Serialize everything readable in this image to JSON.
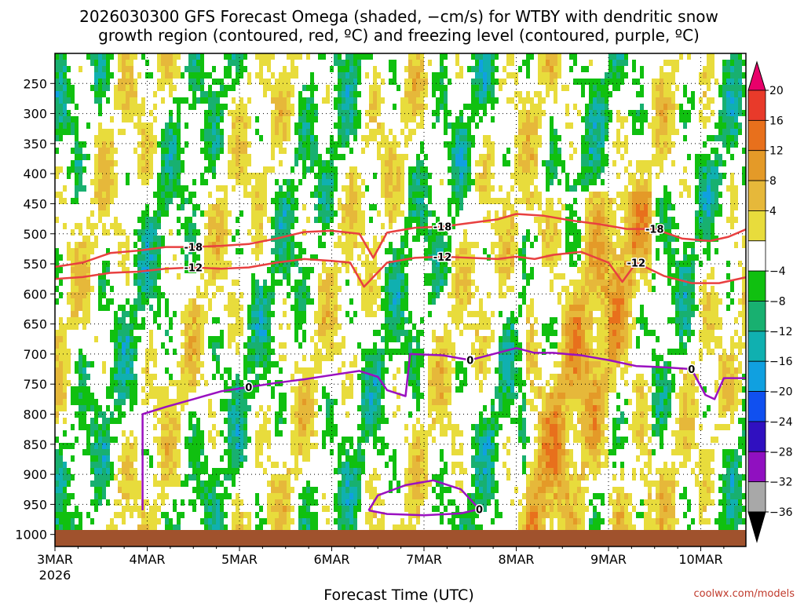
{
  "chart_data": {
    "type": "heatmap",
    "title_line1": "2026030300 GFS Forecast Omega (shaded, −cm/s) for WTBY with dendritic snow",
    "title_line2": "growth region (contoured, red, ºC) and freezing level (contoured, purple, ºC)",
    "xlabel": "Forecast Time (UTC)",
    "ylabel": "",
    "x_ticks": [
      "3MAR",
      "4MAR",
      "5MAR",
      "6MAR",
      "7MAR",
      "8MAR",
      "9MAR",
      "10MAR"
    ],
    "x_year": "2026",
    "y_ticks": [
      "250",
      "300",
      "350",
      "400",
      "450",
      "500",
      "550",
      "600",
      "650",
      "700",
      "750",
      "800",
      "850",
      "900",
      "950",
      "1000"
    ],
    "y_tick_values": [
      250,
      300,
      350,
      400,
      450,
      500,
      550,
      600,
      650,
      700,
      750,
      800,
      850,
      900,
      950,
      1000
    ],
    "ylim": [
      200,
      1020
    ],
    "xlim_days": [
      0,
      7.5
    ],
    "colorbar": {
      "labels": [
        "20",
        "16",
        "12",
        "8",
        "4",
        "−4",
        "−8",
        "−12",
        "−16",
        "−20",
        "−24",
        "−28",
        "−32",
        "−36"
      ],
      "label_values": [
        20,
        16,
        12,
        8,
        4,
        -4,
        -8,
        -12,
        -16,
        -20,
        -24,
        -28,
        -32,
        -36
      ],
      "colors": [
        "#e8006a",
        "#e83a2a",
        "#e8701c",
        "#e49a28",
        "#e6b83a",
        "#e8dc3c",
        "#ffffff",
        "#10c010",
        "#18b070",
        "#10b0b0",
        "#10a0e0",
        "#1050f0",
        "#3010c0",
        "#9010c0",
        "#a8a8a8",
        "#000000"
      ]
    },
    "contours": [
      {
        "name": "-18",
        "color": "#e84040",
        "label": "-18",
        "points": [
          [
            0.0,
            555
          ],
          [
            0.3,
            548
          ],
          [
            0.6,
            532
          ],
          [
            0.9,
            528
          ],
          [
            1.2,
            522
          ],
          [
            1.5,
            522
          ],
          [
            1.8,
            520
          ],
          [
            2.1,
            517
          ],
          [
            2.4,
            508
          ],
          [
            2.7,
            497
          ],
          [
            3.0,
            495
          ],
          [
            3.3,
            500
          ],
          [
            3.45,
            540
          ],
          [
            3.6,
            498
          ],
          [
            3.9,
            490
          ],
          [
            4.2,
            488
          ],
          [
            4.5,
            482
          ],
          [
            4.8,
            476
          ],
          [
            5.0,
            467
          ],
          [
            5.3,
            470
          ],
          [
            5.6,
            478
          ],
          [
            5.9,
            484
          ],
          [
            6.2,
            492
          ],
          [
            6.5,
            492
          ],
          [
            6.8,
            508
          ],
          [
            7.1,
            512
          ],
          [
            7.3,
            505
          ],
          [
            7.5,
            492
          ]
        ]
      },
      {
        "name": "-12",
        "color": "#e84040",
        "label": "-12",
        "points": [
          [
            0.0,
            575
          ],
          [
            0.3,
            572
          ],
          [
            0.6,
            565
          ],
          [
            0.9,
            563
          ],
          [
            1.2,
            558
          ],
          [
            1.5,
            556
          ],
          [
            1.8,
            558
          ],
          [
            2.1,
            556
          ],
          [
            2.4,
            548
          ],
          [
            2.7,
            542
          ],
          [
            3.0,
            545
          ],
          [
            3.2,
            548
          ],
          [
            3.35,
            588
          ],
          [
            3.6,
            548
          ],
          [
            3.9,
            540
          ],
          [
            4.2,
            538
          ],
          [
            4.5,
            540
          ],
          [
            4.8,
            542
          ],
          [
            5.0,
            538
          ],
          [
            5.2,
            542
          ],
          [
            5.4,
            535
          ],
          [
            5.7,
            530
          ],
          [
            6.0,
            548
          ],
          [
            6.15,
            580
          ],
          [
            6.3,
            548
          ],
          [
            6.6,
            570
          ],
          [
            6.9,
            582
          ],
          [
            7.2,
            582
          ],
          [
            7.5,
            572
          ]
        ]
      },
      {
        "name": "0",
        "color": "#9a10c0",
        "label": "0",
        "points": [
          [
            0.95,
            960
          ],
          [
            0.95,
            800
          ],
          [
            1.2,
            788
          ],
          [
            1.5,
            775
          ],
          [
            1.8,
            762
          ],
          [
            2.1,
            755
          ],
          [
            2.4,
            748
          ],
          [
            2.7,
            742
          ],
          [
            3.0,
            735
          ],
          [
            3.3,
            728
          ],
          [
            3.5,
            738
          ],
          [
            3.6,
            760
          ],
          [
            3.8,
            770
          ],
          [
            3.85,
            700
          ],
          [
            4.2,
            702
          ],
          [
            4.5,
            710
          ],
          [
            4.8,
            698
          ],
          [
            5.0,
            690
          ],
          [
            5.2,
            698
          ],
          [
            5.4,
            698
          ],
          [
            5.7,
            702
          ],
          [
            6.0,
            710
          ],
          [
            6.3,
            720
          ],
          [
            6.6,
            722
          ],
          [
            6.9,
            725
          ],
          [
            7.05,
            768
          ],
          [
            7.15,
            775
          ],
          [
            7.25,
            740
          ],
          [
            7.5,
            740
          ]
        ]
      },
      {
        "name": "0b",
        "color": "#9a10c0",
        "label": "0",
        "points": [
          [
            3.4,
            960
          ],
          [
            3.5,
            935
          ],
          [
            3.8,
            918
          ],
          [
            4.1,
            910
          ],
          [
            4.4,
            925
          ],
          [
            4.6,
            958
          ],
          [
            4.4,
            965
          ],
          [
            4.0,
            968
          ],
          [
            3.6,
            966
          ],
          [
            3.4,
            960
          ]
        ]
      }
    ]
  },
  "credit": "coolwx.com/models"
}
